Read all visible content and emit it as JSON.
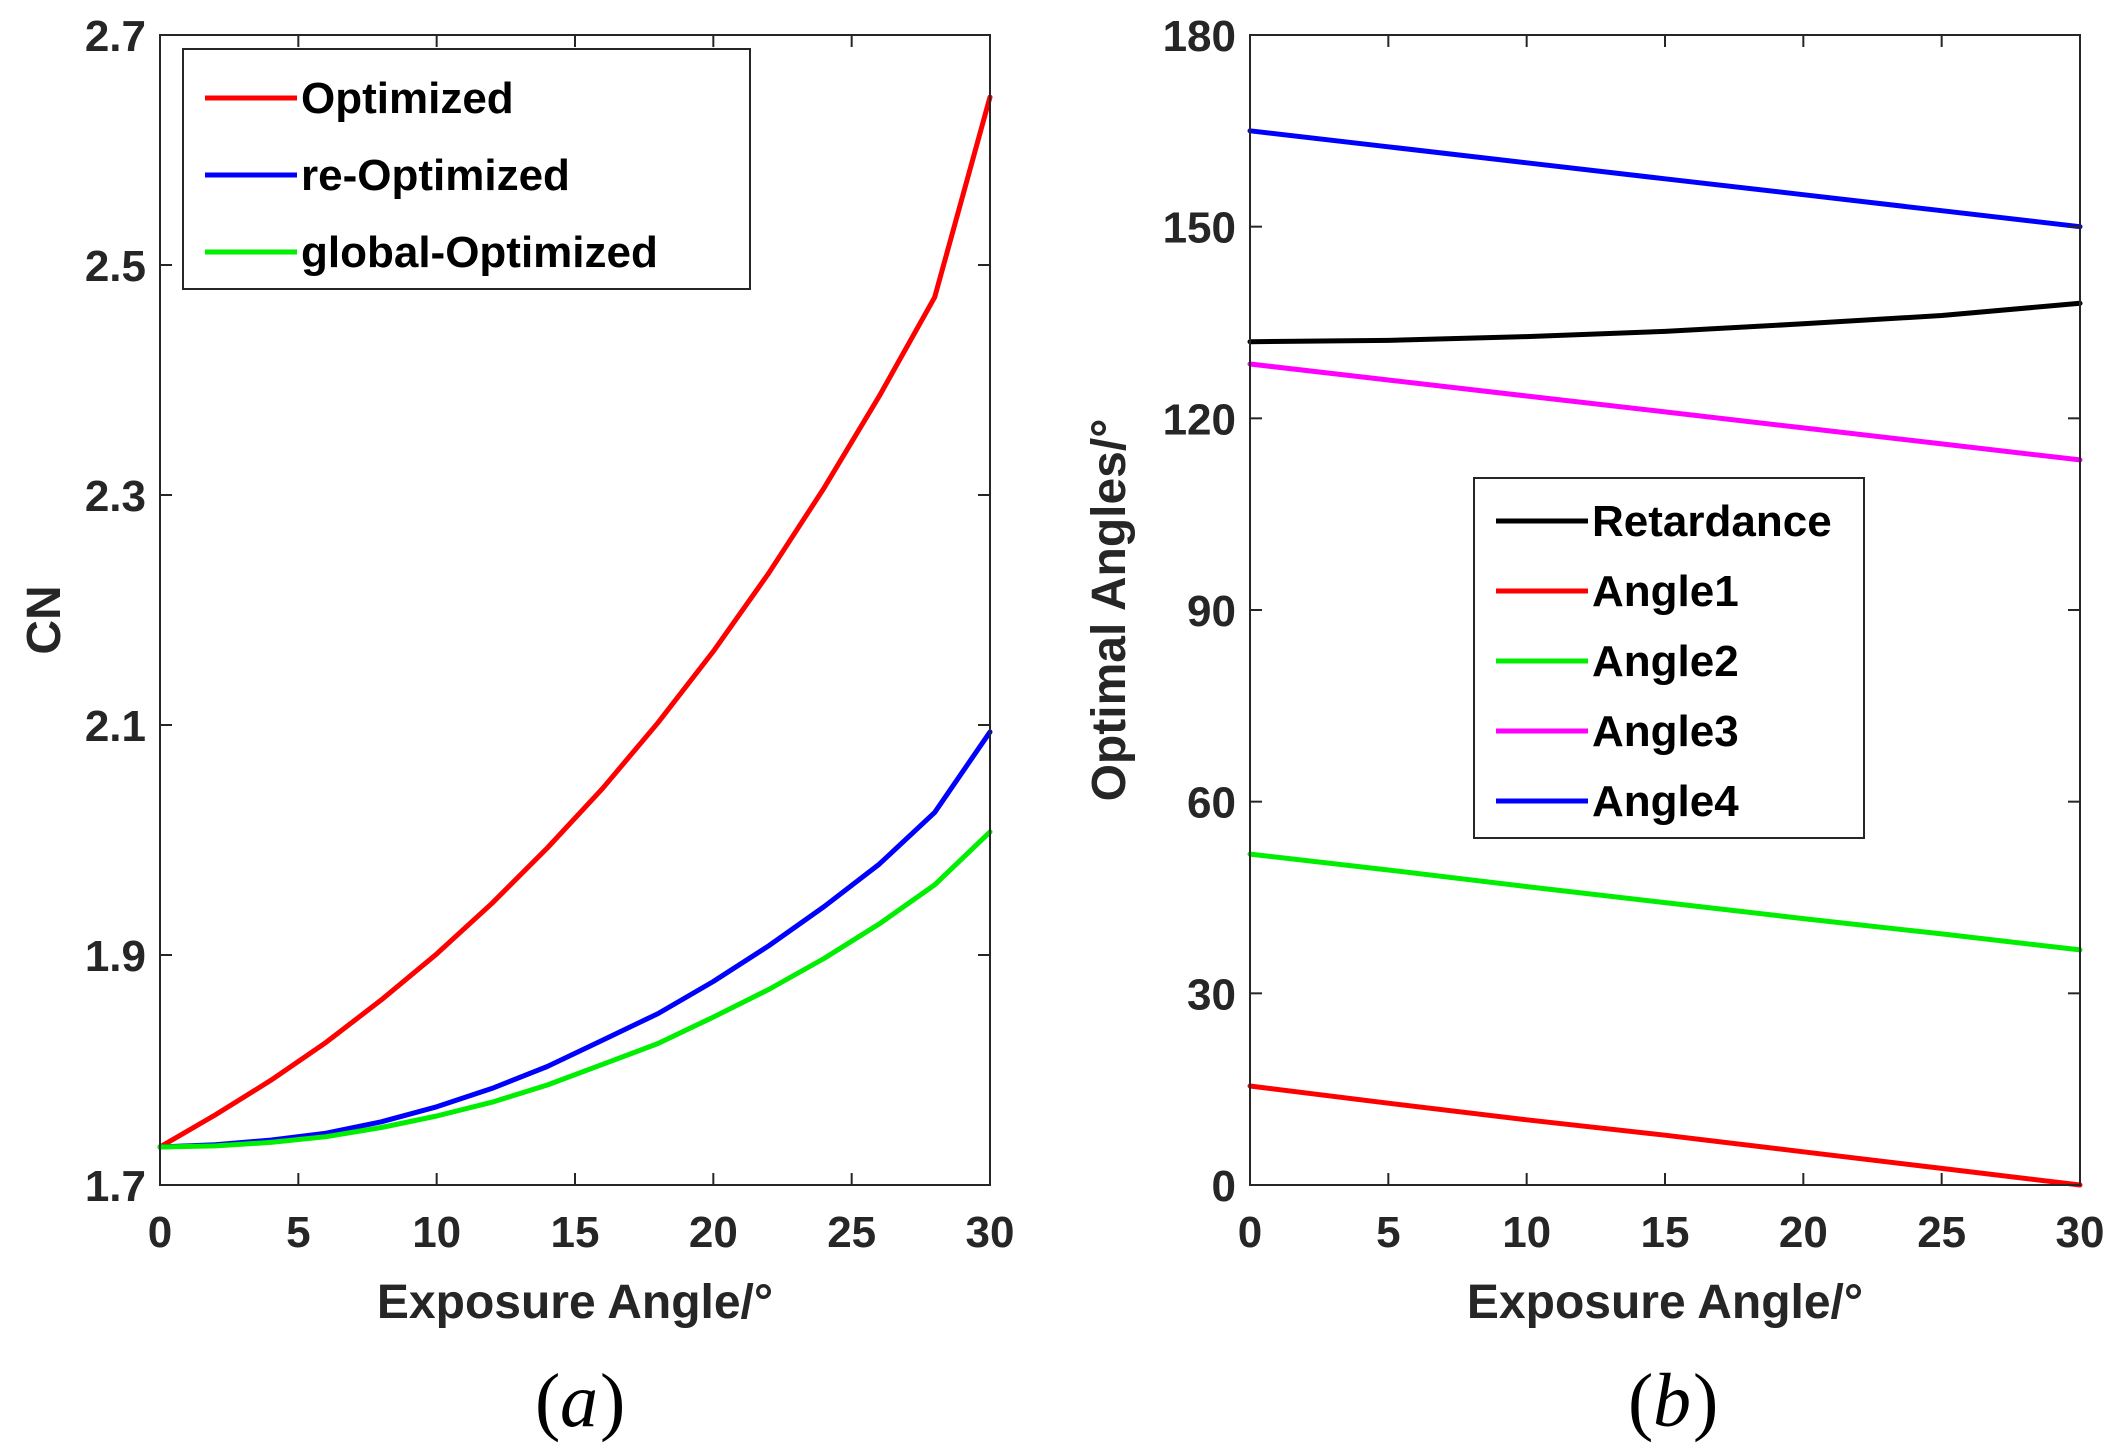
{
  "chart_data": [
    {
      "type": "line",
      "id": "a",
      "caption": "a",
      "xlabel": "Exposure Angle/°",
      "ylabel": "CN",
      "xlim": [
        0,
        30
      ],
      "ylim": [
        1.7,
        2.7
      ],
      "xticks": [
        0,
        5,
        10,
        15,
        20,
        25,
        30
      ],
      "xtick_labels": [
        "0",
        "5",
        "10",
        "15",
        "20",
        "25",
        "30"
      ],
      "yticks": [
        1.7,
        1.9,
        2.1,
        2.3,
        2.5,
        2.7
      ],
      "ytick_labels": [
        "1.7",
        "1.9",
        "2.1",
        "2.3",
        "2.5",
        "2.7"
      ],
      "legend_position": "top-left",
      "x": [
        0,
        2,
        4,
        6,
        8,
        10,
        12,
        14,
        16,
        18,
        20,
        22,
        24,
        26,
        28,
        30
      ],
      "series": [
        {
          "name": "Optimized",
          "color": "#ff0000",
          "values": [
            1.733,
            1.761,
            1.791,
            1.824,
            1.861,
            1.901,
            1.945,
            1.993,
            2.045,
            2.102,
            2.164,
            2.232,
            2.306,
            2.386,
            2.472,
            2.646
          ]
        },
        {
          "name": "re-Optimized",
          "color": "#0000ff",
          "values": [
            1.733,
            1.735,
            1.739,
            1.745,
            1.755,
            1.768,
            1.784,
            1.803,
            1.826,
            1.849,
            1.877,
            1.908,
            1.942,
            1.979,
            2.024,
            2.094
          ]
        },
        {
          "name": "global-Optimized",
          "color": "#00ee00",
          "values": [
            1.733,
            1.734,
            1.737,
            1.742,
            1.75,
            1.76,
            1.772,
            1.787,
            1.805,
            1.823,
            1.846,
            1.87,
            1.897,
            1.927,
            1.961,
            2.007
          ]
        }
      ]
    },
    {
      "type": "line",
      "id": "b",
      "caption": "b",
      "xlabel": "Exposure Angle/°",
      "ylabel": "Optimal Angles/°",
      "xlim": [
        0,
        30
      ],
      "ylim": [
        0,
        180
      ],
      "xticks": [
        0,
        5,
        10,
        15,
        20,
        25,
        30
      ],
      "xtick_labels": [
        "0",
        "5",
        "10",
        "15",
        "20",
        "25",
        "30"
      ],
      "yticks": [
        0,
        30,
        60,
        90,
        120,
        150,
        180
      ],
      "ytick_labels": [
        "0",
        "30",
        "60",
        "90",
        "120",
        "150",
        "180"
      ],
      "legend_position": "center-right",
      "x": [
        0,
        5,
        10,
        15,
        20,
        25,
        30
      ],
      "series": [
        {
          "name": "Retardance",
          "color": "#000000",
          "values": [
            132,
            132.2,
            132.8,
            133.6,
            134.8,
            136.1,
            138
          ]
        },
        {
          "name": "Angle1",
          "color": "#ff0000",
          "values": [
            15.5,
            12.8,
            10.2,
            7.8,
            5.2,
            2.6,
            0
          ]
        },
        {
          "name": "Angle2",
          "color": "#00ee00",
          "values": [
            51.8,
            49.3,
            46.7,
            44.2,
            41.7,
            39.3,
            36.8
          ]
        },
        {
          "name": "Angle3",
          "color": "#ff00ff",
          "values": [
            128.5,
            126,
            123.5,
            121,
            118.5,
            116,
            113.5
          ]
        },
        {
          "name": "Angle4",
          "color": "#0000ff",
          "values": [
            165,
            162.5,
            160,
            157.5,
            155,
            152.5,
            150
          ]
        }
      ]
    }
  ]
}
